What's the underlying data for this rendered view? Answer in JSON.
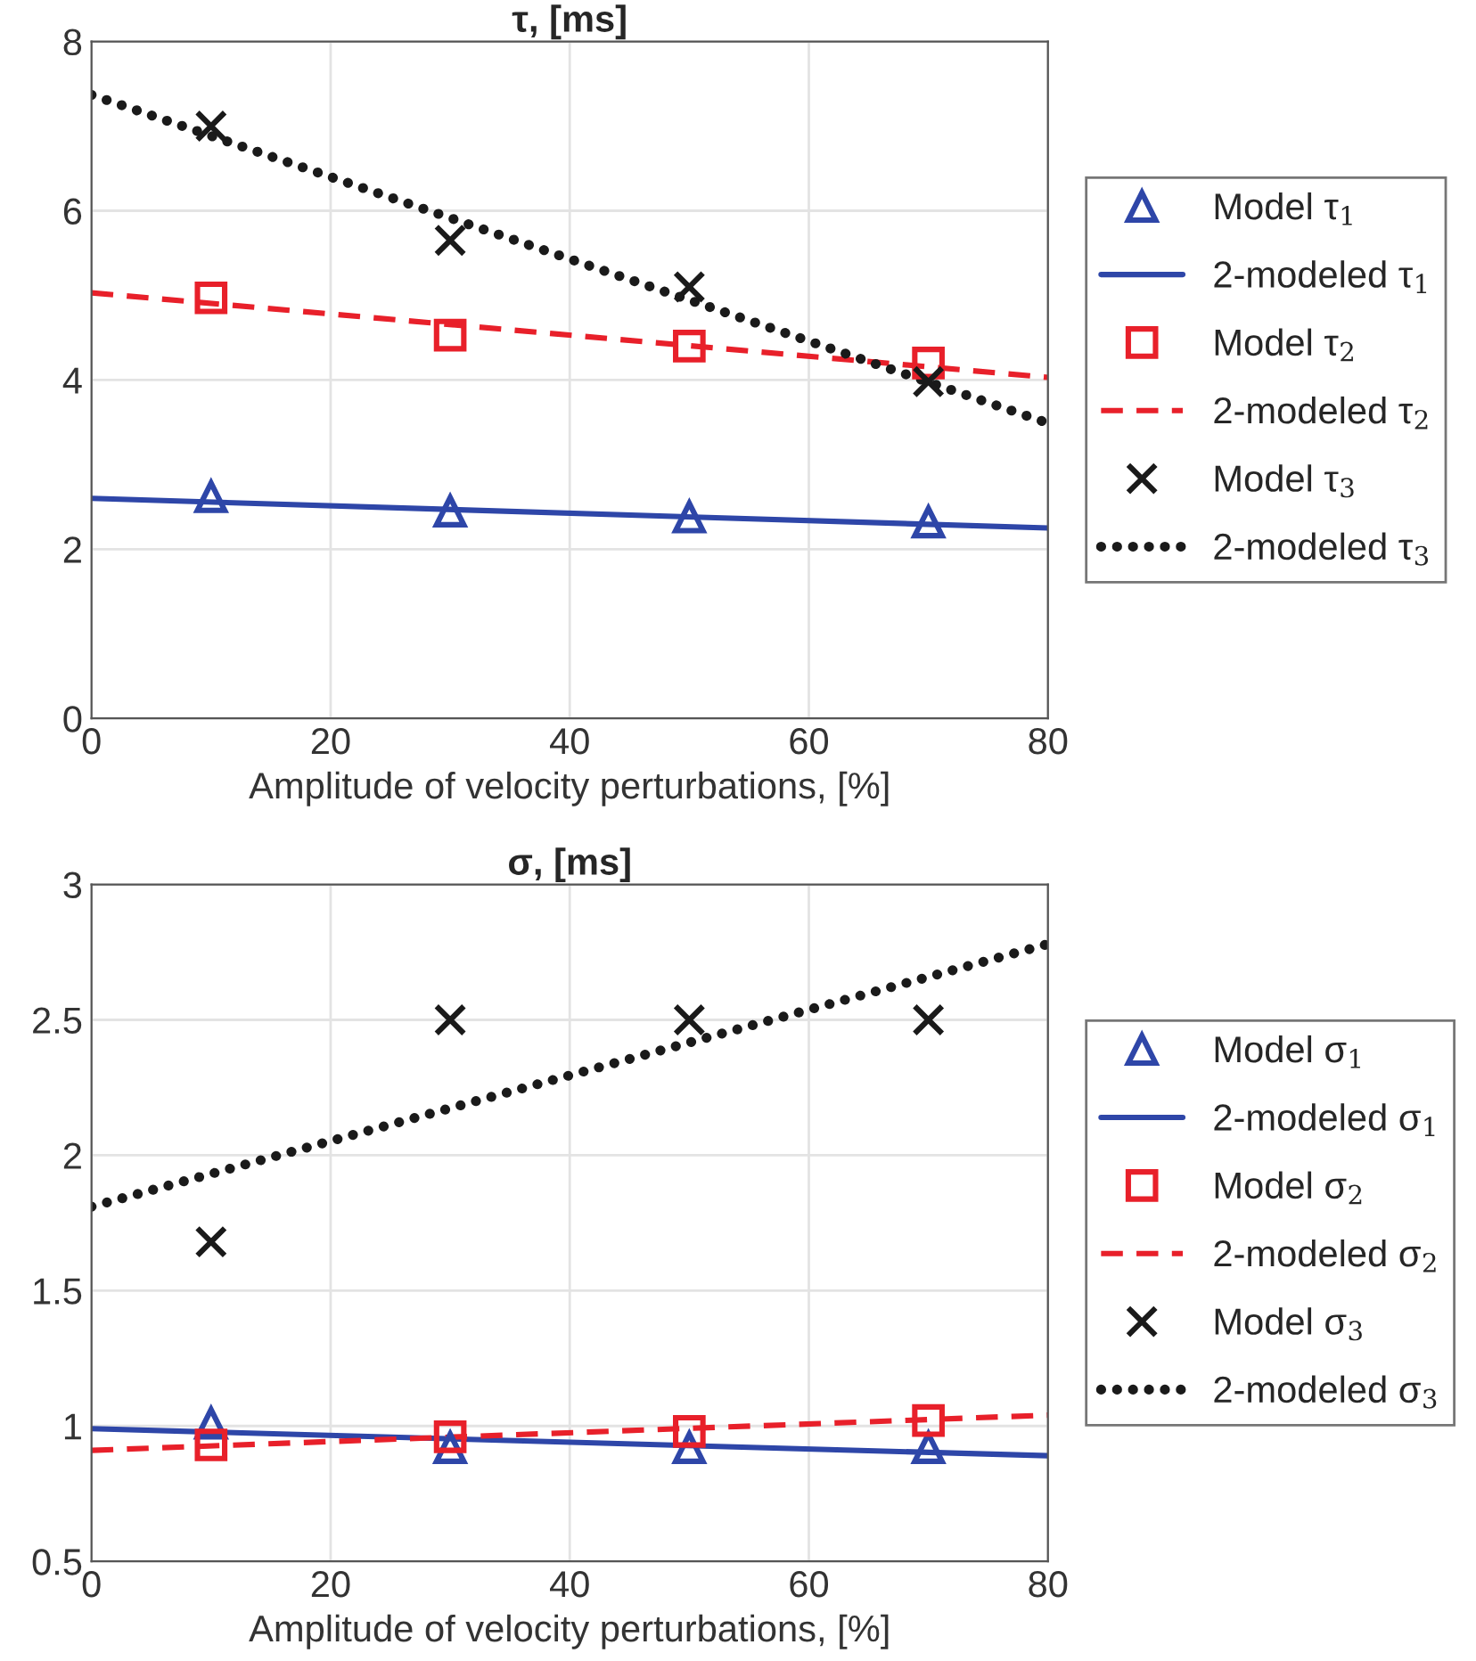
{
  "chart_data": [
    {
      "type": "line",
      "title": "τ, [ms]",
      "xlabel": "Amplitude of velocity perturbations, [%]",
      "xlim": [
        0,
        80
      ],
      "xticks": [
        0,
        20,
        40,
        60,
        80
      ],
      "ylim": [
        0,
        8
      ],
      "yticks": [
        0,
        2,
        4,
        6,
        8
      ],
      "grid": true,
      "legend": "right",
      "series": [
        {
          "name": "Model τ$_{1}$",
          "type": "scatter",
          "marker": "triangle",
          "color": "#2e46a8",
          "x": [
            10,
            30,
            50,
            70
          ],
          "values": [
            2.62,
            2.45,
            2.38,
            2.32
          ]
        },
        {
          "name": "2-modeled τ$_{1}$",
          "line_style": "solid",
          "color": "#2e46a8",
          "x": [
            0,
            80
          ],
          "values": [
            2.6,
            2.25
          ]
        },
        {
          "name": "Model τ$_{2}$",
          "type": "scatter",
          "marker": "square",
          "color": "#e8202a",
          "x": [
            10,
            30,
            50,
            70
          ],
          "values": [
            4.97,
            4.53,
            4.4,
            4.2
          ]
        },
        {
          "name": "2-modeled τ$_{2}$",
          "line_style": "dashed",
          "color": "#e8202a",
          "x": [
            0,
            80
          ],
          "values": [
            5.03,
            4.03
          ]
        },
        {
          "name": "Model τ$_{3}$",
          "type": "scatter",
          "marker": "cross",
          "color": "#1a1a1a",
          "x": [
            10,
            30,
            50,
            70
          ],
          "values": [
            7.0,
            5.65,
            5.1,
            3.98
          ]
        },
        {
          "name": "2-modeled τ$_{3}$",
          "line_style": "dotted",
          "color": "#1a1a1a",
          "x": [
            0,
            80
          ],
          "values": [
            7.37,
            3.49
          ]
        }
      ]
    },
    {
      "type": "line",
      "title": "σ, [ms]",
      "xlabel": "Amplitude of velocity perturbations, [%]",
      "xlim": [
        0,
        80
      ],
      "xticks": [
        0,
        20,
        40,
        60,
        80
      ],
      "ylim": [
        0.5,
        3
      ],
      "yticks": [
        0.5,
        1,
        1.5,
        2,
        2.5,
        3
      ],
      "grid": true,
      "legend": "right",
      "series": [
        {
          "name": "Model σ$_{1}$",
          "type": "scatter",
          "marker": "triangle",
          "color": "#2e46a8",
          "x": [
            10,
            30,
            50,
            70
          ],
          "values": [
            1.01,
            0.92,
            0.92,
            0.92
          ]
        },
        {
          "name": "2-modeled σ$_{1}$",
          "line_style": "solid",
          "color": "#2e46a8",
          "x": [
            0,
            80
          ],
          "values": [
            0.99,
            0.89
          ]
        },
        {
          "name": "Model σ$_{2}$",
          "type": "scatter",
          "marker": "square",
          "color": "#e8202a",
          "x": [
            10,
            30,
            50,
            70
          ],
          "values": [
            0.93,
            0.96,
            0.98,
            1.02
          ]
        },
        {
          "name": "2-modeled σ$_{2}$",
          "line_style": "dashed",
          "color": "#e8202a",
          "x": [
            0,
            80
          ],
          "values": [
            0.91,
            1.04
          ]
        },
        {
          "name": "Model σ$_{3}$",
          "type": "scatter",
          "marker": "cross",
          "color": "#1a1a1a",
          "x": [
            10,
            30,
            50,
            70
          ],
          "values": [
            1.68,
            2.5,
            2.5,
            2.5
          ]
        },
        {
          "name": "2-modeled σ$_{3}$",
          "line_style": "dotted",
          "color": "#1a1a1a",
          "x": [
            0,
            80
          ],
          "values": [
            1.81,
            2.78
          ]
        }
      ]
    }
  ]
}
